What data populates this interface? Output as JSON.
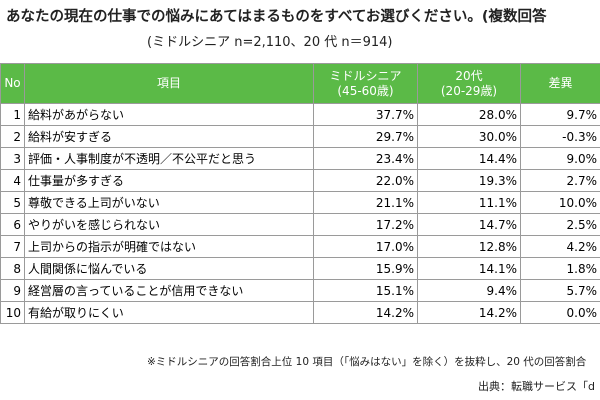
{
  "header": {
    "title": "あなたの現在の仕事での悩みにあてはまるものをすべてお選びください。(複数回答",
    "subtitle": "(ミドルシニア n=2,110、20 代 n＝914)"
  },
  "chart_data": {
    "type": "table",
    "columns": {
      "no": "No",
      "item": "項目",
      "middle": [
        "ミドルシニア",
        "(45-60歳)"
      ],
      "twenties": [
        "20代",
        "(20-29歳)"
      ],
      "diff": "差異"
    },
    "rows": [
      {
        "no": "1",
        "item": "給料があがらない",
        "middle": "37.7%",
        "twenties": "28.0%",
        "diff": "9.7%"
      },
      {
        "no": "2",
        "item": "給料が安すぎる",
        "middle": "29.7%",
        "twenties": "30.0%",
        "diff": "-0.3%"
      },
      {
        "no": "3",
        "item": "評価・人事制度が不透明／不公平だと思う",
        "middle": "23.4%",
        "twenties": "14.4%",
        "diff": "9.0%"
      },
      {
        "no": "4",
        "item": "仕事量が多すぎる",
        "middle": "22.0%",
        "twenties": "19.3%",
        "diff": "2.7%"
      },
      {
        "no": "5",
        "item": "尊敬できる上司がいない",
        "middle": "21.1%",
        "twenties": "11.1%",
        "diff": "10.0%"
      },
      {
        "no": "6",
        "item": "やりがいを感じられない",
        "middle": "17.2%",
        "twenties": "14.7%",
        "diff": "2.5%"
      },
      {
        "no": "7",
        "item": "上司からの指示が明確ではない",
        "middle": "17.0%",
        "twenties": "12.8%",
        "diff": "4.2%"
      },
      {
        "no": "8",
        "item": "人間関係に悩んでいる",
        "middle": "15.9%",
        "twenties": "14.1%",
        "diff": "1.8%"
      },
      {
        "no": "9",
        "item": "経営層の言っていることが信用できない",
        "middle": "15.1%",
        "twenties": "9.4%",
        "diff": "5.7%"
      },
      {
        "no": "10",
        "item": "有給が取りにくい",
        "middle": "14.2%",
        "twenties": "14.2%",
        "diff": "0.0%"
      }
    ]
  },
  "footer": {
    "note": "※ミドルシニアの回答割合上位 10 項目（「悩みはない」を除く）を抜粋し、20 代の回答割合",
    "source": "出典：転職サービス「d"
  },
  "colors": {
    "header_bg": "#5bba47",
    "header_text": "#ffffff",
    "border": "#9a9a9a"
  }
}
